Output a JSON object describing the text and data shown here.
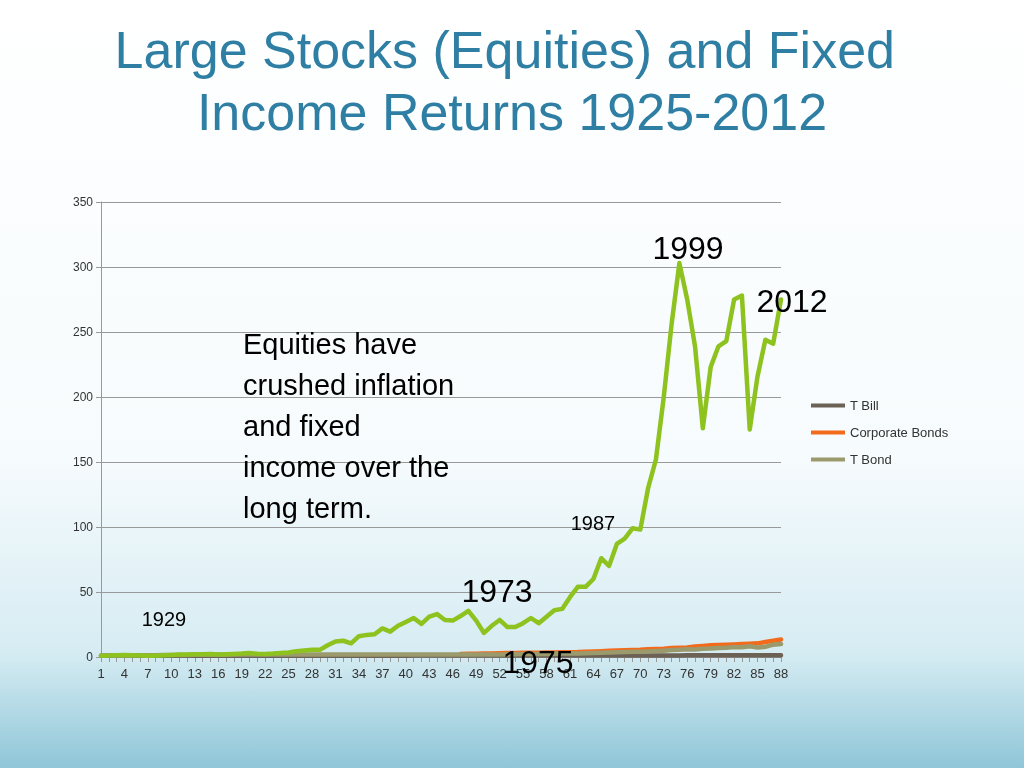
{
  "chart_data": {
    "type": "line",
    "title": "Large Stocks (Equities) and Fixed Income Returns 1925-2012",
    "categories": [
      "1",
      null,
      null,
      "4",
      null,
      null,
      "7",
      null,
      null,
      "10",
      null,
      null,
      "13",
      null,
      null,
      "16",
      null,
      null,
      "19",
      null,
      null,
      "22",
      null,
      null,
      "25",
      null,
      null,
      "28",
      null,
      null,
      "31",
      null,
      null,
      "34",
      null,
      null,
      "37",
      null,
      null,
      "40",
      null,
      null,
      "43",
      null,
      null,
      "46",
      null,
      null,
      "49",
      null,
      null,
      "52",
      null,
      null,
      "55",
      null,
      null,
      "58",
      null,
      null,
      "61",
      null,
      null,
      "64",
      null,
      null,
      "67",
      null,
      null,
      "70",
      null,
      null,
      "73",
      null,
      null,
      "76",
      null,
      null,
      "79",
      null,
      null,
      "82",
      null,
      null,
      "85",
      null,
      null,
      "88"
    ],
    "series": [
      {
        "color": "#8dc21f",
        "values": [
          1,
          1.1,
          1.4,
          1.6,
          1.4,
          1.1,
          0.9,
          1,
          1.3,
          1.6,
          1.9,
          2,
          2.1,
          2.2,
          2.3,
          2,
          2.2,
          2.4,
          2.6,
          3,
          2.5,
          2.4,
          2.6,
          3,
          3.5,
          4.5,
          5,
          5.5,
          5.5,
          9,
          12,
          12.5,
          10.5,
          16,
          17,
          17.5,
          22,
          19.5,
          24,
          27,
          30,
          25.5,
          31,
          33,
          28.5,
          28,
          31.5,
          35.5,
          28,
          18.5,
          24,
          28.5,
          23,
          23,
          26,
          30,
          26,
          31,
          36,
          37,
          46,
          54,
          54,
          60,
          76,
          70,
          87,
          91,
          99,
          98,
          130,
          152,
          200,
          256,
          303,
          275,
          239,
          176,
          223,
          239,
          243,
          275,
          278,
          175,
          216,
          244,
          241,
          275
        ]
      },
      {
        "name": "T Bill",
        "color": "#6b6155",
        "values": [
          1,
          1,
          1,
          1,
          1,
          1,
          1,
          1,
          1,
          1,
          1,
          1,
          1,
          1,
          1,
          1,
          1,
          1,
          1,
          1,
          1,
          1,
          1,
          1,
          1,
          1,
          1,
          1,
          1,
          1,
          1,
          1,
          1,
          1,
          1,
          1,
          1,
          1,
          1,
          1,
          1.1,
          1.1,
          1.1,
          1.1,
          1.1,
          1.1,
          1.1,
          1.1,
          1.1,
          1.1,
          1.1,
          1.1,
          1.1,
          1.1,
          1.1,
          1.1,
          1.1,
          1.1,
          1.1,
          1.1,
          1.2,
          1.2,
          1.2,
          1.2,
          1.2,
          1.2,
          1.2,
          1.2,
          1.2,
          1.2,
          1.2,
          1.2,
          1.2,
          1.2,
          1.2,
          1.3,
          1.3,
          1.3,
          1.3,
          1.3,
          1.3,
          1.3,
          1.3,
          1.3,
          1.3,
          1.3,
          1.3,
          1.3
        ]
      },
      {
        "name": "Corporate Bonds",
        "color": "#f26b1d",
        "values": [
          null,
          null,
          null,
          null,
          null,
          null,
          null,
          null,
          null,
          null,
          null,
          null,
          null,
          null,
          null,
          null,
          null,
          null,
          null,
          null,
          null,
          null,
          null,
          null,
          null,
          null,
          null,
          null,
          null,
          null,
          null,
          null,
          null,
          null,
          null,
          null,
          null,
          null,
          null,
          null,
          null,
          null,
          null,
          null,
          null,
          null,
          2.4,
          2.5,
          2.5,
          2.6,
          2.7,
          2.8,
          3,
          3.1,
          3.2,
          3.3,
          3.3,
          3.4,
          3.5,
          3.6,
          3.7,
          3.8,
          4.1,
          4.3,
          4.5,
          4.8,
          5,
          5.2,
          5.4,
          5.6,
          6,
          6.2,
          6.4,
          7,
          7.2,
          7.4,
          8,
          8.5,
          9,
          9.2,
          9.5,
          9.7,
          10,
          10.2,
          10.5,
          11.5,
          12.5,
          13.5
        ]
      },
      {
        "name": "T Bond",
        "color": "#9b9a6c",
        "values": [
          1,
          1.1,
          1.1,
          1.2,
          1.2,
          1.3,
          1.3,
          1.4,
          1.5,
          1.5,
          1.6,
          1.6,
          1.7,
          1.7,
          1.8,
          1.8,
          1.8,
          1.9,
          1.9,
          1.9,
          1.9,
          1.9,
          1.9,
          1.9,
          1.9,
          1.9,
          1.9,
          1.9,
          1.9,
          1.9,
          1.9,
          1.9,
          1.9,
          1.9,
          1.9,
          1.9,
          1.9,
          1.9,
          1.9,
          1.9,
          1.9,
          1.9,
          1.9,
          1.9,
          1.9,
          1.9,
          1.9,
          2,
          2,
          2,
          2,
          2,
          2.1,
          2.2,
          2.3,
          2.3,
          2.4,
          2.4,
          2.5,
          2.6,
          2.6,
          2.7,
          2.8,
          3,
          3.2,
          3.4,
          3.6,
          3.8,
          4,
          4,
          4.3,
          4.6,
          4.9,
          5.3,
          5.6,
          5.9,
          5.7,
          6.3,
          6.5,
          7,
          7.2,
          7.6,
          7.5,
          8.3,
          7.3,
          7.8,
          9.5,
          10
        ]
      }
    ],
    "ylim": [
      0,
      350
    ],
    "yticks": [
      0,
      50,
      100,
      150,
      200,
      250,
      300,
      350
    ],
    "grid": "y",
    "legend": "right",
    "marker": "none",
    "line_style": "solid",
    "annotations": [
      "1999",
      "2012",
      "1987",
      "1973",
      "1975",
      "1929",
      "Equities have crushed inflation and fixed income over the long term."
    ]
  }
}
